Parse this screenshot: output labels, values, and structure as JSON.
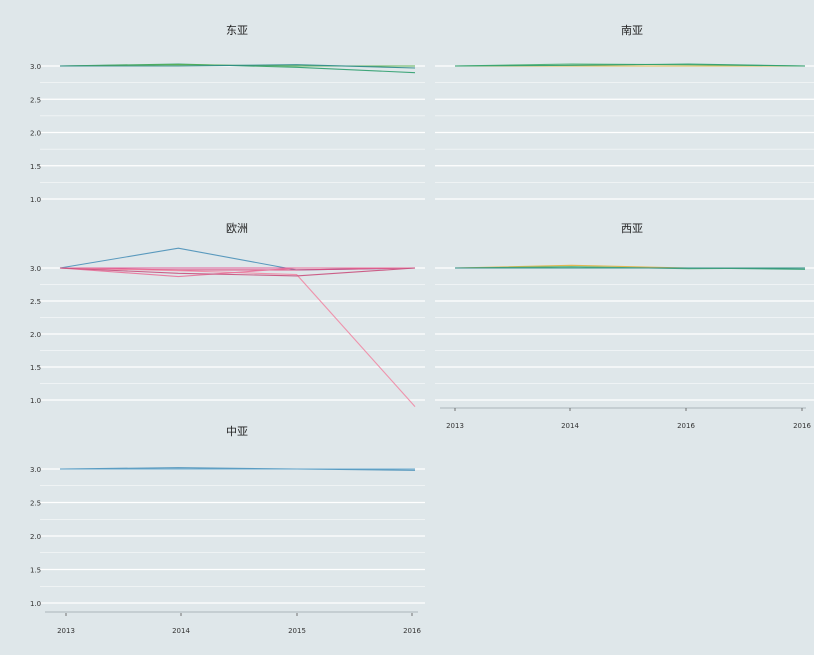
{
  "chart_data": [
    {
      "type": "line",
      "title": "东亚",
      "ylim": [
        0.9,
        3.1
      ],
      "yticks": [
        "3.0",
        "2.5",
        "2.0",
        "1.5",
        "1.0"
      ],
      "colors": [
        "#2e9f6e",
        "#58b04a",
        "#2b8a8a"
      ],
      "series": [
        {
          "values": [
            3.0,
            3.03,
            2.98,
            2.9
          ]
        },
        {
          "values": [
            3.0,
            3.02,
            3.0,
            3.0
          ]
        },
        {
          "values": [
            3.0,
            3.0,
            3.02,
            2.97
          ]
        }
      ]
    },
    {
      "type": "line",
      "title": "南亚",
      "ylim": [
        0.9,
        3.1
      ],
      "colors": [
        "#e1b23f",
        "#48b06f",
        "#2e9f6e"
      ],
      "series": [
        {
          "values": [
            3.0,
            3.0,
            3.0,
            3.0
          ]
        },
        {
          "values": [
            3.0,
            3.03,
            3.02,
            3.0
          ]
        },
        {
          "values": [
            3.0,
            3.01,
            3.03,
            3.0
          ]
        }
      ]
    },
    {
      "type": "line",
      "title": "欧洲",
      "ylim": [
        0.9,
        3.1
      ],
      "yticks": [
        "3.0",
        "2.5",
        "2.0",
        "1.5",
        "1.0"
      ],
      "colors": [
        "#4a90b8",
        "#e0467c",
        "#d94c8c",
        "#f08aa5",
        "#e8729a",
        "#c94f7c"
      ],
      "series": [
        {
          "values": [
            3.0,
            3.3,
            2.97,
            3.0
          ]
        },
        {
          "values": [
            3.0,
            2.97,
            2.97,
            3.0
          ]
        },
        {
          "values": [
            3.0,
            3.0,
            3.0,
            3.0
          ]
        },
        {
          "values": [
            3.0,
            2.96,
            2.9,
            0.9
          ]
        },
        {
          "values": [
            3.0,
            2.87,
            3.0,
            3.0
          ]
        },
        {
          "values": [
            3.0,
            2.92,
            2.88,
            3.0
          ]
        }
      ]
    },
    {
      "type": "line",
      "title": "西亚",
      "ylim": [
        0.9,
        3.1
      ],
      "xticks": [
        "2013",
        "2014",
        "2016",
        "2016"
      ],
      "colors": [
        "#e1b23f",
        "#2e9f6e",
        "#48b06f",
        "#2b8a8a"
      ],
      "series": [
        {
          "values": [
            3.0,
            3.04,
            3.0,
            3.0
          ]
        },
        {
          "values": [
            3.0,
            3.0,
            3.0,
            2.98
          ]
        },
        {
          "values": [
            3.0,
            3.02,
            2.99,
            3.0
          ]
        },
        {
          "values": [
            3.0,
            3.0,
            3.0,
            3.0
          ]
        }
      ]
    },
    {
      "type": "line",
      "title": "中亚",
      "ylim": [
        0.9,
        3.1
      ],
      "yticks": [
        "3.0",
        "2.5",
        "2.0",
        "1.5",
        "1.0"
      ],
      "xticks": [
        "2013",
        "2014",
        "2015",
        "2016"
      ],
      "colors": [
        "#4a90b8",
        "#5aa0c8"
      ],
      "series": [
        {
          "values": [
            3.0,
            3.02,
            3.0,
            2.98
          ]
        },
        {
          "values": [
            3.0,
            3.0,
            3.0,
            3.0
          ]
        }
      ]
    }
  ]
}
